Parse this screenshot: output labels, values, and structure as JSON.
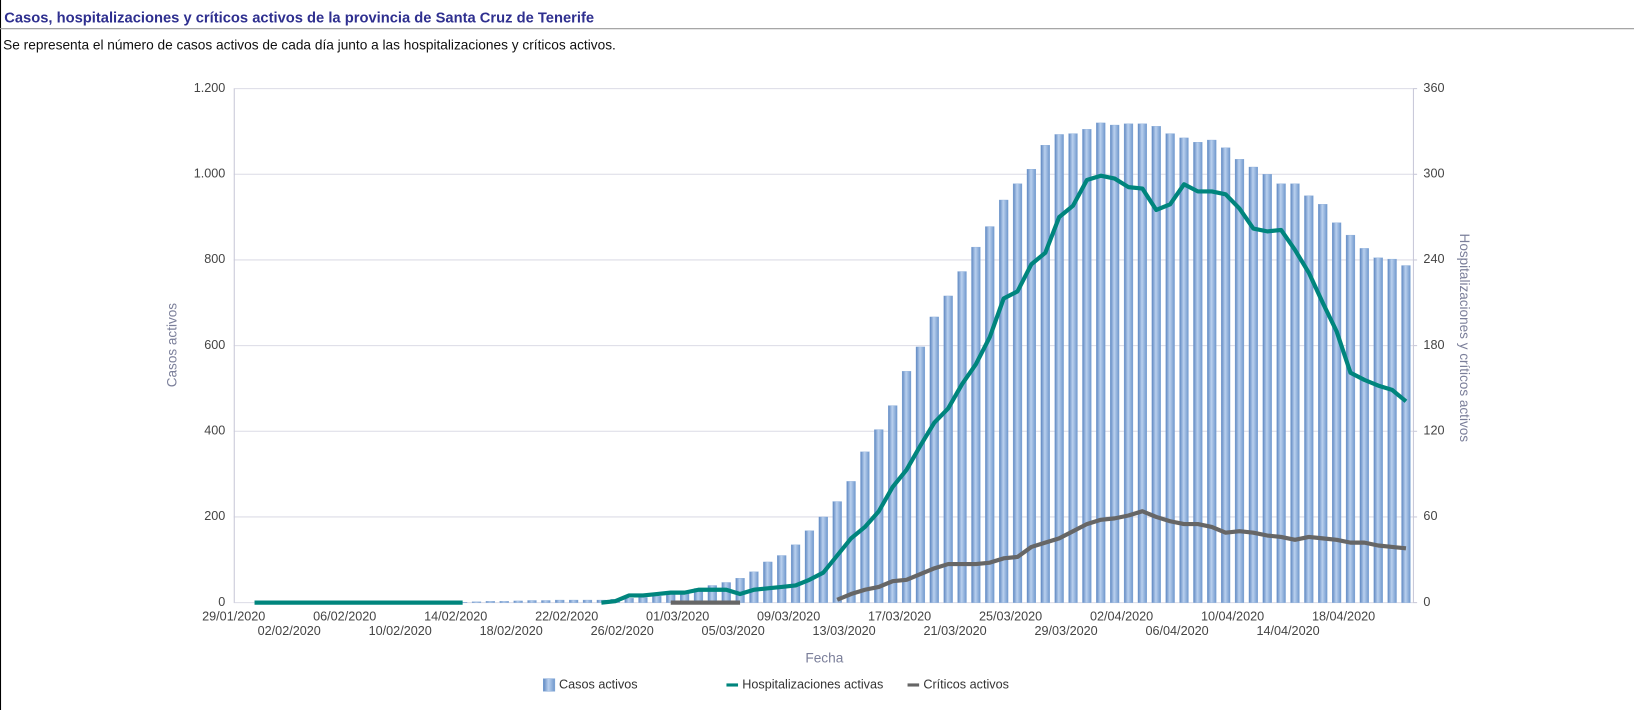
{
  "chart_data": {
    "type": "bar",
    "title": "Casos, hospitalizaciones y críticos activos de la provincia de Santa Cruz de Tenerife",
    "subtitle": "Se representa el número de casos activos de cada día junto a las hospitalizaciones y críticos activos.",
    "x_label": "Fecha",
    "y_label": "Casos activos",
    "y2_label": "Hospitalizaciones y críticos activos",
    "categories": [
      "29/01/2020",
      null,
      null,
      null,
      "02/02/2020",
      null,
      null,
      null,
      "06/02/2020",
      null,
      null,
      null,
      "10/02/2020",
      null,
      null,
      null,
      "14/02/2020",
      null,
      null,
      null,
      "18/02/2020",
      null,
      null,
      null,
      "22/02/2020",
      null,
      null,
      null,
      "26/02/2020",
      null,
      null,
      null,
      "01/03/2020",
      null,
      null,
      null,
      "05/03/2020",
      null,
      null,
      null,
      "09/03/2020",
      null,
      null,
      null,
      "13/03/2020",
      null,
      null,
      null,
      "17/03/2020",
      null,
      null,
      null,
      "21/03/2020",
      null,
      null,
      null,
      "25/03/2020",
      null,
      null,
      null,
      "29/03/2020",
      null,
      null,
      null,
      "02/04/2020",
      null,
      null,
      null,
      "06/04/2020",
      null,
      null,
      null,
      "10/04/2020",
      null,
      null,
      null,
      "14/04/2020",
      null,
      null,
      null,
      "18/04/2020",
      null,
      null,
      null,
      null
    ],
    "series": [
      {
        "name": "Casos activos",
        "type": "bar",
        "color": "#7fa5d6",
        "values": [
          0,
          0,
          0,
          0,
          0,
          0,
          0,
          0,
          0,
          0,
          0,
          0,
          0,
          0,
          0,
          0,
          1,
          2,
          3,
          3,
          4,
          5,
          5,
          6,
          6,
          6,
          6,
          8,
          10,
          12,
          15,
          20,
          25,
          33,
          40,
          47,
          57,
          72,
          95,
          110,
          135,
          168,
          200,
          236,
          283,
          352,
          404,
          460,
          540,
          597,
          667,
          716,
          773,
          830,
          878,
          940,
          978,
          1012,
          1068,
          1093,
          1095,
          1105,
          1120,
          1115,
          1118,
          1118,
          1112,
          1095,
          1085,
          1075,
          1080,
          1062,
          1035,
          1017,
          1000,
          978,
          978,
          950,
          930,
          887,
          858,
          827,
          805,
          802,
          787
        ]
      },
      {
        "name": "Hospitalizaciones activas",
        "type": "line",
        "axis": "y2",
        "color": "#00857d",
        "values": [
          null,
          0,
          0,
          0,
          0,
          0,
          0,
          0,
          0,
          0,
          0,
          0,
          0,
          0,
          0,
          0,
          0,
          null,
          null,
          null,
          null,
          null,
          null,
          null,
          null,
          null,
          0,
          1,
          5,
          5,
          6,
          7,
          7,
          9,
          9,
          9,
          6,
          9,
          10,
          11,
          12,
          16,
          21,
          33,
          45,
          53,
          64,
          81,
          93,
          110,
          126,
          136,
          153,
          167,
          186,
          213,
          218,
          237,
          245,
          270,
          278,
          296,
          299,
          297,
          291,
          290,
          275,
          279,
          293,
          288,
          288,
          286,
          276,
          262,
          260,
          261,
          247,
          231,
          210,
          190,
          161,
          156,
          152,
          149,
          141
        ]
      },
      {
        "name": "Críticos activos",
        "type": "line",
        "axis": "y2",
        "color": "#666666",
        "values": [
          null,
          null,
          null,
          null,
          null,
          null,
          null,
          null,
          null,
          null,
          null,
          null,
          null,
          null,
          null,
          null,
          null,
          null,
          null,
          null,
          null,
          null,
          null,
          null,
          null,
          null,
          null,
          null,
          null,
          null,
          null,
          0,
          0,
          0,
          0,
          0,
          0,
          null,
          null,
          null,
          null,
          null,
          null,
          2,
          6,
          9,
          11,
          15,
          16,
          20,
          24,
          27,
          27,
          27,
          28,
          31,
          32,
          39,
          42,
          45,
          50,
          55,
          58,
          59,
          61,
          64,
          60,
          57,
          55,
          55,
          53,
          49,
          50,
          49,
          47,
          46,
          44,
          46,
          45,
          44,
          42,
          42,
          40,
          39,
          38
        ]
      }
    ],
    "ylim": [
      0,
      1200
    ],
    "yticks": [
      0,
      200,
      400,
      600,
      800,
      {
        "value": 1000,
        "label": "1.000"
      },
      {
        "value": 1200,
        "label": "1.200"
      }
    ],
    "y2lim": [
      0,
      360
    ],
    "y2ticks": [
      0,
      60,
      120,
      180,
      240,
      300,
      360
    ],
    "grid": true,
    "legend": "bottom"
  }
}
